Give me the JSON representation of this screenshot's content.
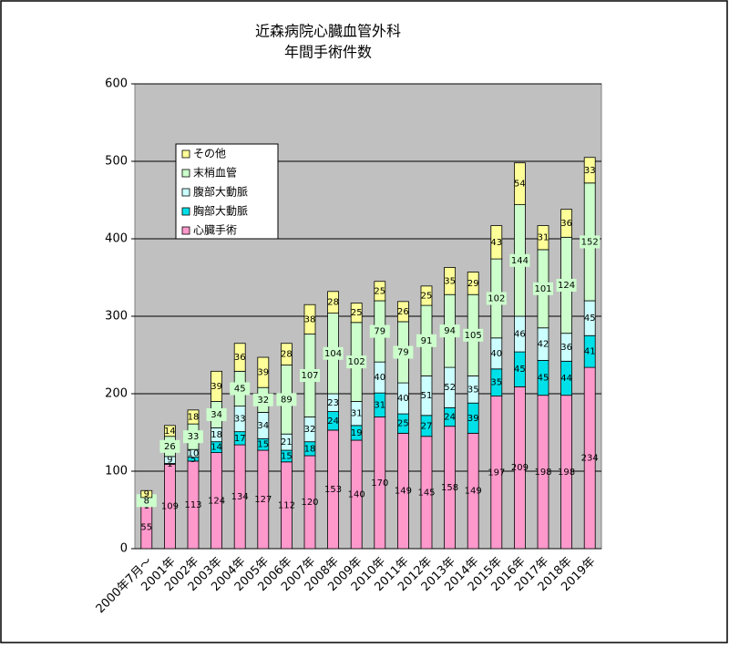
{
  "chart_data": {
    "type": "stacked_bar",
    "title": "近森病院心臓血管外科",
    "subtitle": "年間手術件数",
    "categories": [
      "2000年7月～",
      "2001年",
      "2002年",
      "2003年",
      "2004年",
      "2005年",
      "2006年",
      "2007年",
      "2008年",
      "2009年",
      "2010年",
      "2011年",
      "2012年",
      "2013年",
      "2014年",
      "2015年",
      "2016年",
      "2017年",
      "2018年",
      "2019年"
    ],
    "series": [
      {
        "name": "心臓手術",
        "color": "#ff99cc",
        "values": [
          55,
          109,
          113,
          124,
          134,
          127,
          112,
          120,
          153,
          140,
          170,
          149,
          145,
          158,
          149,
          197,
          209,
          198,
          198,
          234
        ]
      },
      {
        "name": "胸部大動脈",
        "color": "#00e0e8",
        "values": [
          1,
          1,
          5,
          14,
          17,
          15,
          15,
          18,
          24,
          19,
          31,
          25,
          27,
          24,
          39,
          35,
          45,
          45,
          44,
          41
        ]
      },
      {
        "name": "腹部大動脈",
        "color": "#ccffff",
        "values": [
          2,
          9,
          10,
          18,
          33,
          34,
          21,
          32,
          23,
          31,
          40,
          40,
          51,
          52,
          35,
          40,
          46,
          42,
          36,
          45
        ]
      },
      {
        "name": "末梢血管",
        "color": "#ccffcc",
        "values": [
          8,
          26,
          33,
          34,
          45,
          32,
          89,
          107,
          104,
          102,
          79,
          79,
          91,
          94,
          105,
          102,
          144,
          101,
          124,
          152
        ]
      },
      {
        "name": "その他",
        "color": "#ffff99",
        "values": [
          9,
          14,
          18,
          39,
          36,
          39,
          28,
          38,
          28,
          25,
          25,
          26,
          25,
          35,
          29,
          43,
          54,
          31,
          36,
          33
        ]
      }
    ],
    "ylim": [
      0,
      600
    ],
    "yticks": [
      0,
      100,
      200,
      300,
      400,
      500,
      600
    ],
    "grid": true
  }
}
